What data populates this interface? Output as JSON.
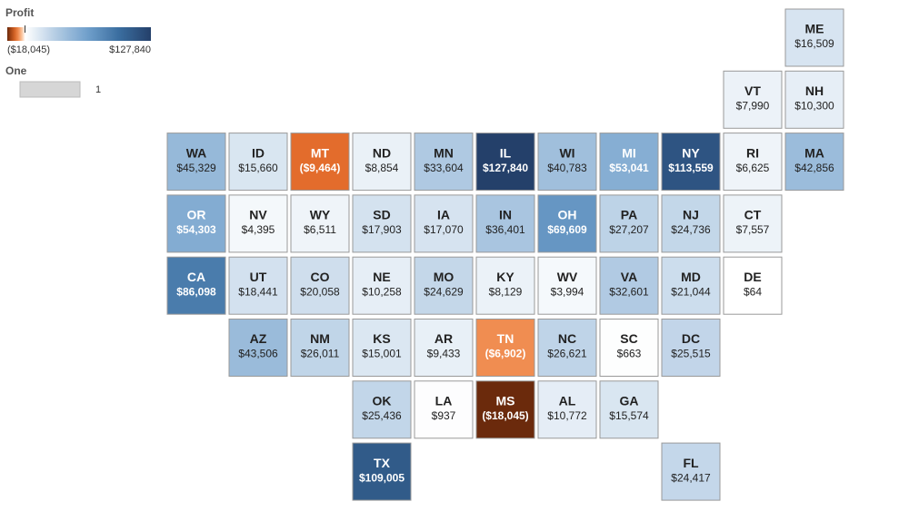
{
  "chart_data": {
    "type": "tilemap",
    "categories": [
      "ME",
      "VT",
      "NH",
      "WA",
      "ID",
      "MT",
      "ND",
      "MN",
      "IL",
      "WI",
      "MI",
      "NY",
      "RI",
      "MA",
      "OR",
      "NV",
      "WY",
      "SD",
      "IA",
      "IN",
      "OH",
      "PA",
      "NJ",
      "CT",
      "CA",
      "UT",
      "CO",
      "NE",
      "MO",
      "KY",
      "WV",
      "VA",
      "MD",
      "DE",
      "AZ",
      "NM",
      "KS",
      "AR",
      "TN",
      "NC",
      "SC",
      "DC",
      "OK",
      "LA",
      "MS",
      "AL",
      "GA",
      "TX",
      "FL"
    ],
    "values": [
      16509,
      7990,
      10300,
      45329,
      15660,
      -9464,
      8854,
      33604,
      127840,
      40783,
      53041,
      113559,
      6625,
      42856,
      54303,
      4395,
      6511,
      17903,
      17070,
      36401,
      69609,
      27207,
      24736,
      7557,
      86098,
      18441,
      20058,
      10258,
      24629,
      8129,
      3994,
      32601,
      21044,
      64,
      43506,
      26011,
      15001,
      9433,
      -6902,
      26621,
      663,
      25515,
      25436,
      937,
      -18045,
      10772,
      15574,
      109005,
      24417
    ],
    "value_labels": [
      "$16,509",
      "$7,990",
      "$10,300",
      "$45,329",
      "$15,660",
      "($9,464)",
      "$8,854",
      "$33,604",
      "$127,840",
      "$40,783",
      "$53,041",
      "$113,559",
      "$6,625",
      "$42,856",
      "$54,303",
      "$4,395",
      "$6,511",
      "$17,903",
      "$17,070",
      "$36,401",
      "$69,609",
      "$27,207",
      "$24,736",
      "$7,557",
      "$86,098",
      "$18,441",
      "$20,058",
      "$10,258",
      "$24,629",
      "$8,129",
      "$3,994",
      "$32,601",
      "$21,044",
      "$64",
      "$43,506",
      "$26,011",
      "$15,001",
      "$9,433",
      "($6,902)",
      "$26,621",
      "$663",
      "$25,515",
      "$25,436",
      "$937",
      "($18,045)",
      "$10,772",
      "$15,574",
      "$109,005",
      "$24,417"
    ],
    "color_scale": {
      "title": "Profit",
      "ticks": [
        {
          "value": -18045,
          "label": "($18,045)"
        },
        {
          "value": 127840,
          "label": "$127,840"
        }
      ],
      "center": 0,
      "negative_colors": [
        "#ffffff",
        "#f8ad78",
        "#e8702e",
        "#b04c17",
        "#6b2a0c"
      ],
      "positive_colors": [
        "#ffffff",
        "#b2cbe3",
        "#6f9fcb",
        "#3a6d9f",
        "#24406a"
      ]
    },
    "size_legend": {
      "title": "One",
      "values": [
        1
      ]
    }
  }
}
